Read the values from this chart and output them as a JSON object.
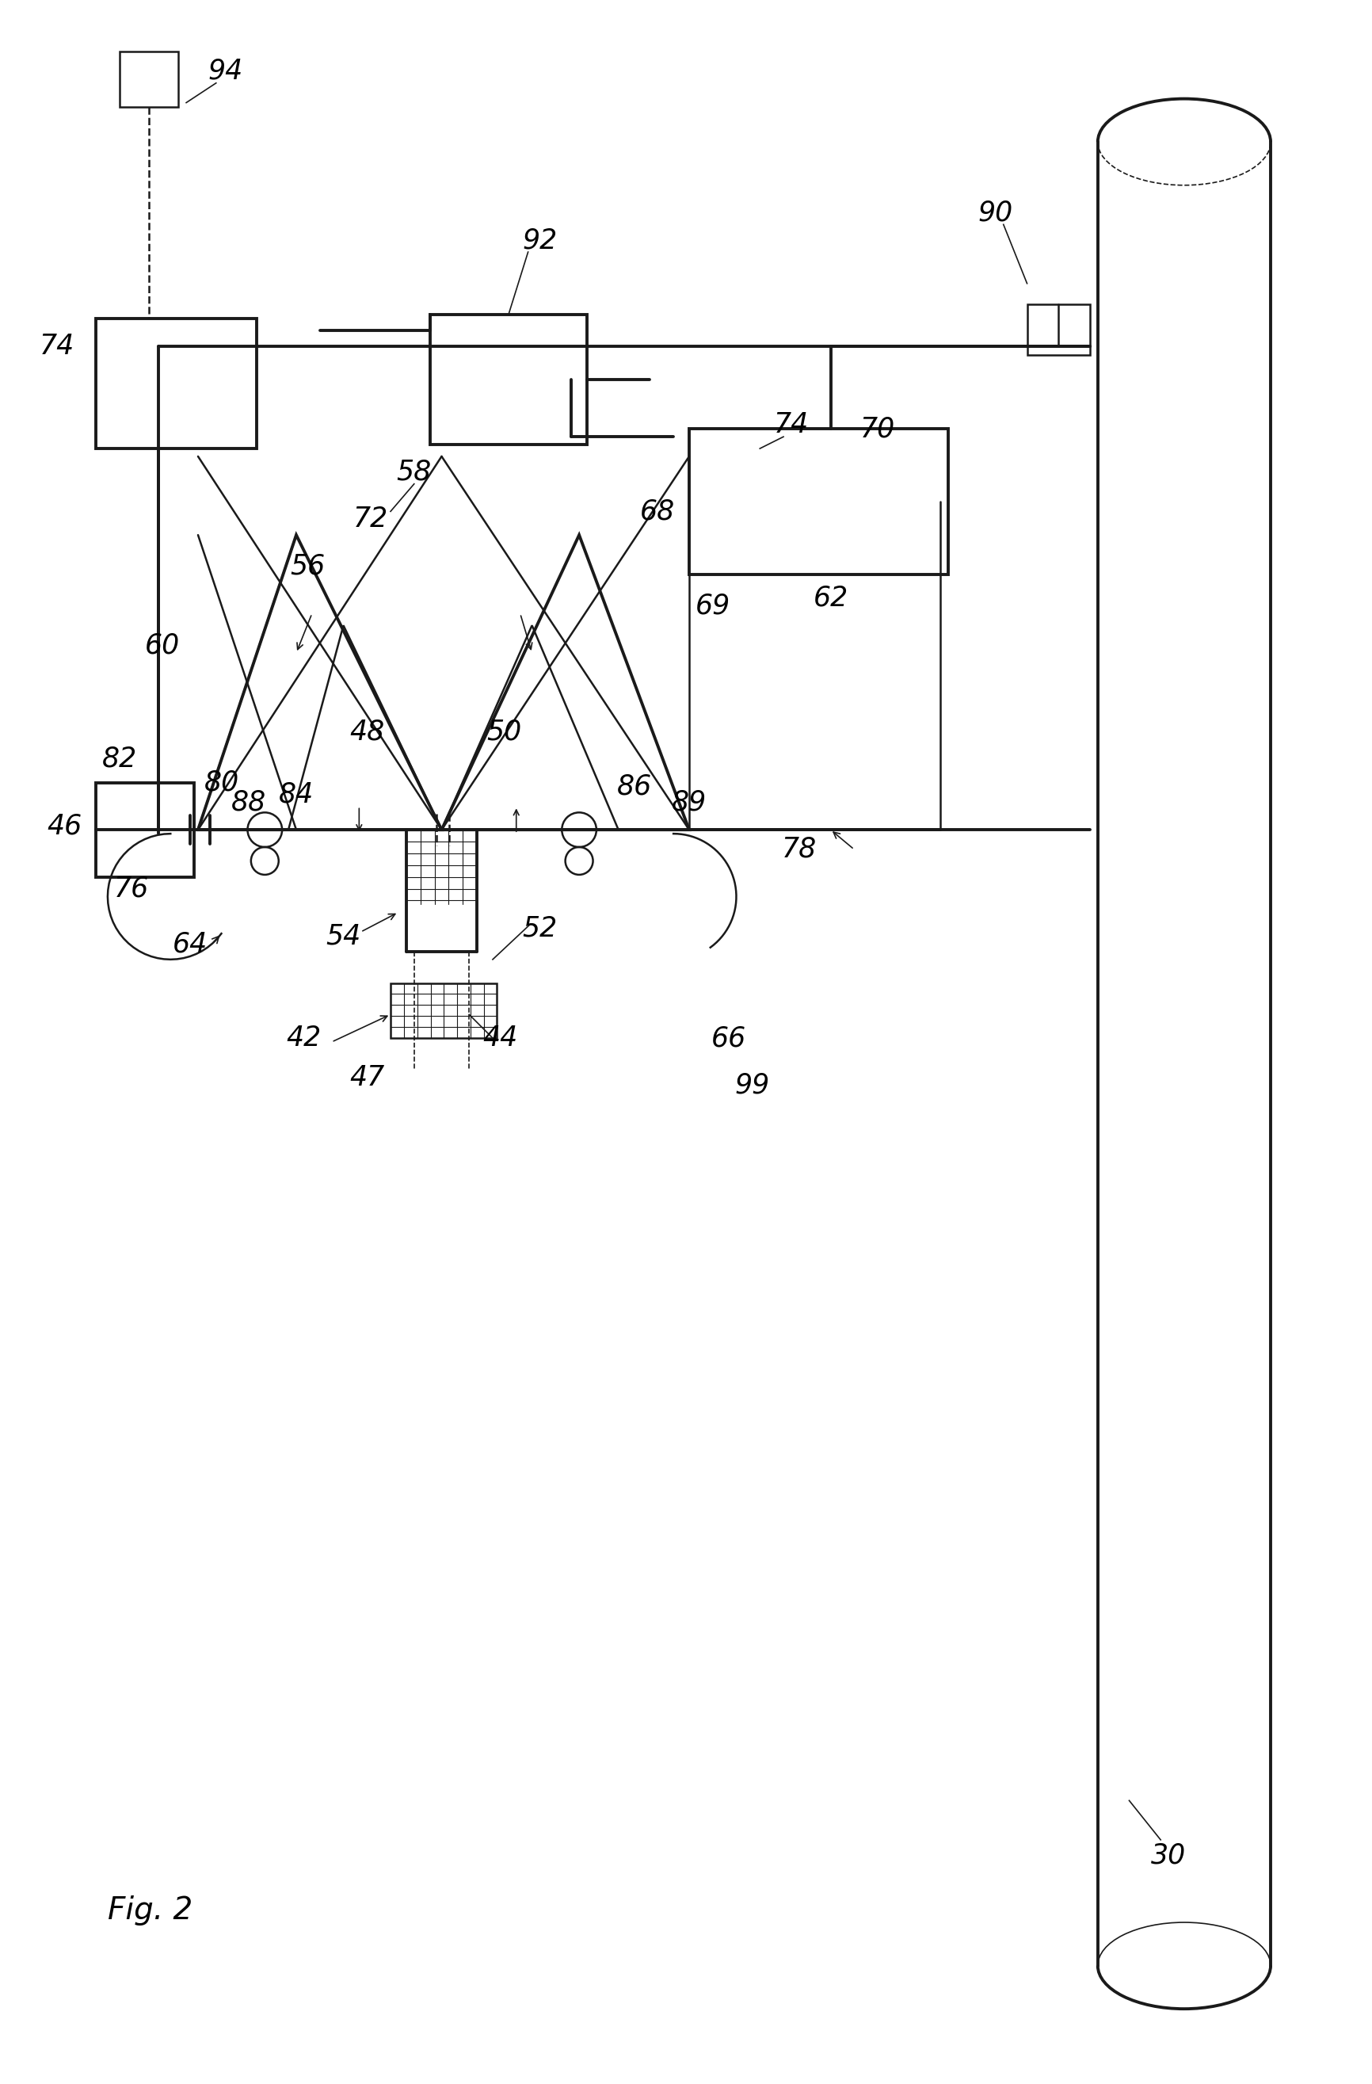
{
  "background_color": "#ffffff",
  "line_color": "#1a1a1a",
  "fig_label": "Fig. 2",
  "lw_thick": 2.8,
  "lw_med": 1.8,
  "lw_thin": 1.2
}
